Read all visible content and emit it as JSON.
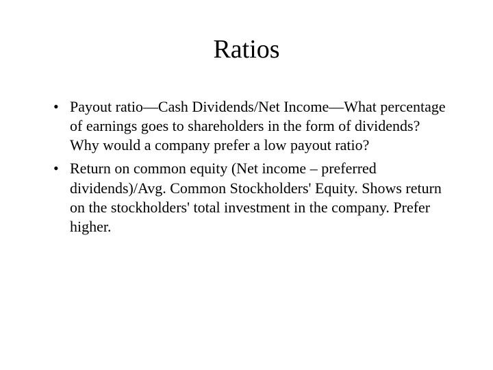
{
  "slide": {
    "title": "Ratios",
    "title_fontsize": 38,
    "body_fontsize": 22,
    "background_color": "#ffffff",
    "text_color": "#000000",
    "font_family": "Times New Roman",
    "bullets": [
      "Payout ratio—Cash Dividends/Net Income—What percentage of earnings goes to shareholders in the form of dividends?  Why would a company prefer a low payout ratio?",
      "Return on common equity (Net income – preferred dividends)/Avg. Common Stockholders' Equity.  Shows return on the stockholders' total investment in the company.  Prefer higher."
    ]
  }
}
